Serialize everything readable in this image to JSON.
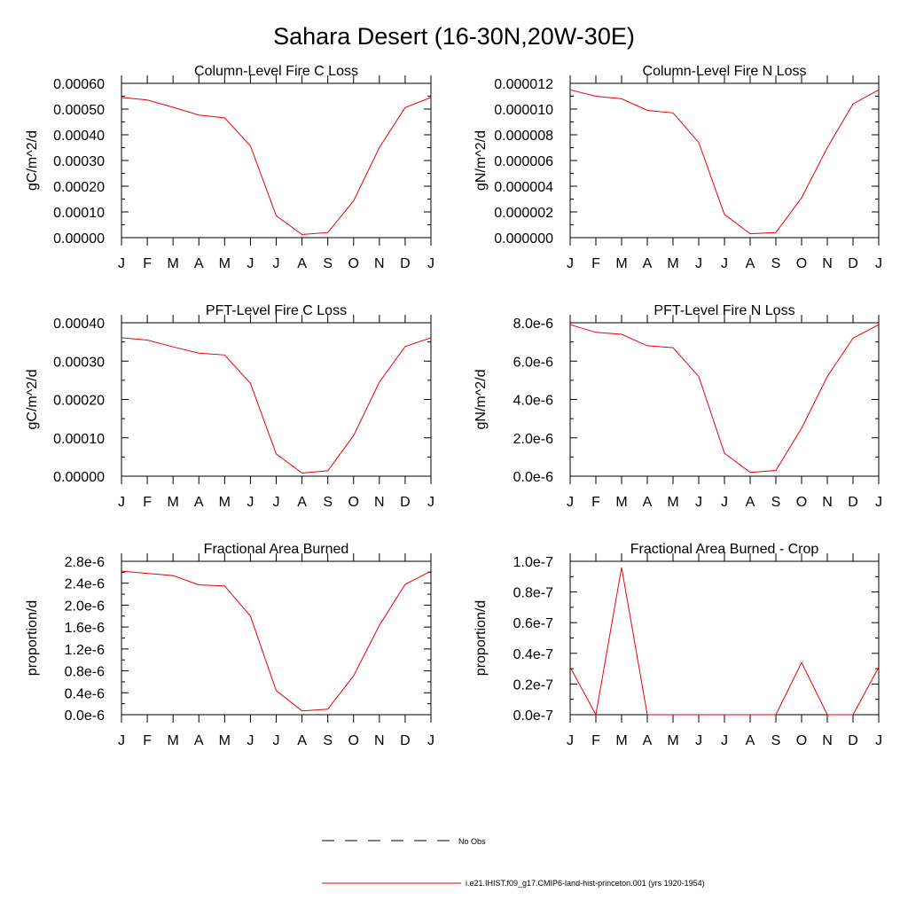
{
  "page_title": "Sahara Desert (16-30N,20W-30E)",
  "legend": {
    "no_obs_label": "No Obs",
    "model_label": "i.e21.IHIST.f09_g17.CMIP6-land-hist-princeton.001 (yrs 1920-1954)",
    "model_color": "#e8000b",
    "obs_color": "#000000"
  },
  "chart_data": [
    {
      "type": "line",
      "title": "Column-Level Fire C Loss",
      "ylabel": "gC/m^2/d",
      "categories": [
        "J",
        "F",
        "M",
        "A",
        "M",
        "J",
        "J",
        "A",
        "S",
        "O",
        "N",
        "D",
        "J"
      ],
      "ylim": [
        0,
        0.0006
      ],
      "yticks": [
        "0.00000",
        "0.00010",
        "0.00020",
        "0.00030",
        "0.00040",
        "0.00050",
        "0.00060"
      ],
      "series": [
        {
          "values": [
            0.000545,
            0.000535,
            0.000507,
            0.000477,
            0.000466,
            0.000357,
            8.5e-05,
            1.2e-05,
            2e-05,
            0.000143,
            0.00035,
            0.000506,
            0.000545
          ]
        }
      ]
    },
    {
      "type": "line",
      "title": "Column-Level Fire N Loss",
      "ylabel": "gN/m^2/d",
      "categories": [
        "J",
        "F",
        "M",
        "A",
        "M",
        "J",
        "J",
        "A",
        "S",
        "O",
        "N",
        "D",
        "J"
      ],
      "ylim": [
        0,
        1.2e-05
      ],
      "yticks": [
        "0.000000",
        "0.000002",
        "0.000004",
        "0.000006",
        "0.000008",
        "0.000010",
        "0.000012"
      ],
      "series": [
        {
          "values": [
            1.15e-05,
            1.1e-05,
            1.08e-05,
            9.9e-06,
            9.7e-06,
            7.4e-06,
            1.8e-06,
            3e-07,
            4e-07,
            3.1e-06,
            7e-06,
            1.04e-05,
            1.15e-05
          ]
        }
      ]
    },
    {
      "type": "line",
      "title": "PFT-Level Fire C Loss",
      "ylabel": "gC/m^2/d",
      "categories": [
        "J",
        "F",
        "M",
        "A",
        "M",
        "J",
        "J",
        "A",
        "S",
        "O",
        "N",
        "D",
        "J"
      ],
      "ylim": [
        0,
        0.0004
      ],
      "yticks": [
        "0.00000",
        "0.00010",
        "0.00020",
        "0.00030",
        "0.00040"
      ],
      "series": [
        {
          "values": [
            0.000361,
            0.000355,
            0.000337,
            0.000321,
            0.000316,
            0.000242,
            5.8e-05,
            8e-06,
            1.4e-05,
            0.000106,
            0.000245,
            0.000338,
            0.000361
          ]
        }
      ]
    },
    {
      "type": "line",
      "title": "PFT-Level Fire N Loss",
      "ylabel": "gN/m^2/d",
      "categories": [
        "J",
        "F",
        "M",
        "A",
        "M",
        "J",
        "J",
        "A",
        "S",
        "O",
        "N",
        "D",
        "J"
      ],
      "ylim": [
        0,
        8e-06
      ],
      "yticks": [
        "0.0e-6",
        "2.0e-6",
        "4.0e-6",
        "6.0e-6",
        "8.0e-6"
      ],
      "series": [
        {
          "values": [
            7.9e-06,
            7.5e-06,
            7.4e-06,
            6.8e-06,
            6.7e-06,
            5.2e-06,
            1.2e-06,
            2e-07,
            3e-07,
            2.5e-06,
            5.2e-06,
            7.2e-06,
            7.9e-06
          ]
        }
      ]
    },
    {
      "type": "line",
      "title": "Fractional Area Burned",
      "ylabel": "proportion/d",
      "categories": [
        "J",
        "F",
        "M",
        "A",
        "M",
        "J",
        "J",
        "A",
        "S",
        "O",
        "N",
        "D",
        "J"
      ],
      "ylim": [
        0,
        2.8e-06
      ],
      "yticks": [
        "0.0e-6",
        "0.4e-6",
        "0.8e-6",
        "1.2e-6",
        "1.6e-6",
        "2.0e-6",
        "2.4e-6",
        "2.8e-6"
      ],
      "series": [
        {
          "values": [
            2.62e-06,
            2.58e-06,
            2.54e-06,
            2.37e-06,
            2.35e-06,
            1.8e-06,
            4.4e-07,
            7e-08,
            1e-07,
            7.1e-07,
            1.63e-06,
            2.38e-06,
            2.62e-06
          ]
        }
      ]
    },
    {
      "type": "line",
      "title": "Fractional Area Burned - Crop",
      "ylabel": "proportion/d",
      "categories": [
        "J",
        "F",
        "M",
        "A",
        "M",
        "J",
        "J",
        "A",
        "S",
        "O",
        "N",
        "D",
        "J"
      ],
      "ylim": [
        0,
        1e-07
      ],
      "yticks": [
        "0.0e-7",
        "0.2e-7",
        "0.4e-7",
        "0.6e-7",
        "0.8e-7",
        "1.0e-7"
      ],
      "series": [
        {
          "values": [
            3.1e-08,
            0.0,
            9.6e-08,
            0.0,
            0.0,
            0.0,
            0.0,
            0.0,
            0.0,
            3.4e-08,
            0.0,
            0.0,
            3.1e-08
          ]
        }
      ]
    }
  ]
}
